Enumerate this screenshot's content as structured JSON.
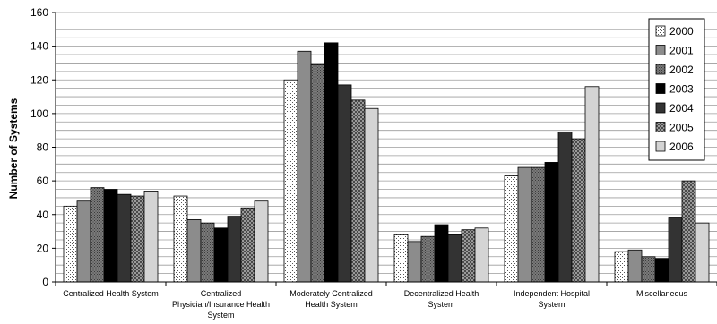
{
  "chart_data": {
    "type": "bar",
    "categories": [
      [
        "Centralized Health System"
      ],
      [
        "Centralized",
        "Physician/Insurance Health",
        "System"
      ],
      [
        "Moderately Centralized",
        "Health System"
      ],
      [
        "Decentralized Health",
        "System"
      ],
      [
        "Independent Hospital",
        "System"
      ],
      [
        "Miscellaneous"
      ]
    ],
    "series": [
      {
        "name": "2000",
        "values": [
          45,
          51,
          120,
          28,
          63,
          18
        ],
        "fill": "#ffffff",
        "pattern": "dots"
      },
      {
        "name": "2001",
        "values": [
          48,
          37,
          137,
          24,
          68,
          19
        ],
        "fill": "#8c8c8c",
        "pattern": "solid"
      },
      {
        "name": "2002",
        "values": [
          56,
          35,
          129,
          27,
          68,
          15
        ],
        "fill": "#6e6e6e",
        "pattern": "fine"
      },
      {
        "name": "2003",
        "values": [
          55,
          32,
          142,
          34,
          71,
          14
        ],
        "fill": "#000000",
        "pattern": "solid"
      },
      {
        "name": "2004",
        "values": [
          52,
          39,
          117,
          28,
          89,
          38
        ],
        "fill": "#333333",
        "pattern": "solid"
      },
      {
        "name": "2005",
        "values": [
          51,
          44,
          108,
          31,
          85,
          60
        ],
        "fill": "#7a7a7a",
        "pattern": "grid"
      },
      {
        "name": "2006",
        "values": [
          54,
          48,
          103,
          32,
          116,
          35
        ],
        "fill": "#d4d4d4",
        "pattern": "solid"
      }
    ],
    "xlabel": "",
    "ylabel": "Number of Systems",
    "ylim": [
      0,
      160
    ],
    "yticks": [
      0,
      20,
      40,
      60,
      80,
      100,
      120,
      140,
      160
    ],
    "grid": "horizontal, every 5 units",
    "legend": "top-right"
  }
}
